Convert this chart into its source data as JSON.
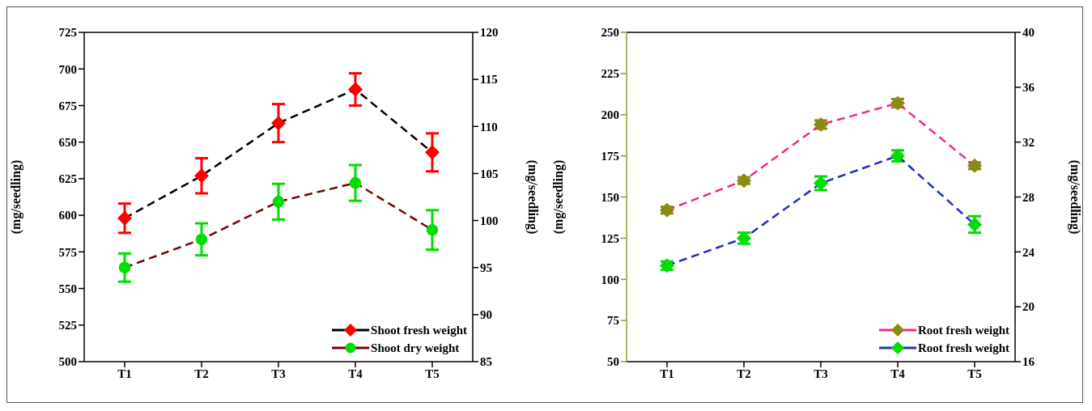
{
  "chart_data": [
    {
      "type": "line",
      "categories": [
        "T1",
        "T2",
        "T3",
        "T4",
        "T5"
      ],
      "ylabel": "(mg/seedling)",
      "y2label": "(mg/seedling)",
      "ylim": [
        500,
        725
      ],
      "yticks": [
        500,
        525,
        550,
        575,
        600,
        625,
        650,
        675,
        700,
        725
      ],
      "y2lim": [
        85,
        120
      ],
      "y2ticks": [
        85,
        90,
        95,
        100,
        105,
        110,
        115,
        120
      ],
      "legend": "bottom right",
      "line_style": "dashed",
      "grid": false,
      "series": [
        {
          "name": "Shoot fresh weight",
          "color": "#000000",
          "colors": [
            "#ff0000",
            "#ff0000",
            "#ff0000",
            "#ff0000",
            "#ff0000"
          ],
          "marker": "diamond",
          "values": [
            598,
            627,
            663,
            686,
            643
          ],
          "errors": [
            10,
            12,
            13,
            11,
            13
          ]
        },
        {
          "name": "Shoot dry weight",
          "axis": "y2",
          "color": "#7b0000",
          "colors": [
            "#00dd00",
            "#00dd00",
            "#00dd00",
            "#00dd00",
            "#00dd00"
          ],
          "marker": "circle",
          "values": [
            95,
            98,
            102,
            104,
            99
          ],
          "errors": [
            1.5,
            1.7,
            1.9,
            1.9,
            2.1
          ]
        }
      ]
    },
    {
      "type": "line",
      "categories": [
        "T1",
        "T2",
        "T3",
        "T4",
        "T5"
      ],
      "ylabel": "(mg/seedling)",
      "y2label": "(mg/seedling)",
      "ylim": [
        50,
        250
      ],
      "yticks": [
        50,
        75,
        100,
        125,
        150,
        175,
        200,
        225,
        250
      ],
      "y2lim": [
        16,
        40
      ],
      "y2ticks": [
        16,
        20,
        24,
        28,
        32,
        36,
        40
      ],
      "legend": "bottom right",
      "line_style": "dashed",
      "grid": false,
      "series": [
        {
          "name": "Root fresh weight",
          "color": "#f0288c",
          "colors": [
            "#8a8a10",
            "#8a8a10",
            "#8a8a10",
            "#8a8a10",
            "#8a8a10"
          ],
          "marker": "diamond",
          "values": [
            142,
            160,
            194,
            207,
            169
          ],
          "errors": [
            2,
            2,
            2.5,
            2.5,
            2
          ]
        },
        {
          "name": "Root fresh weight",
          "axis": "y2",
          "color": "#1f2fbf",
          "colors": [
            "#00dd00",
            "#00dd00",
            "#00dd00",
            "#00dd00",
            "#00dd00"
          ],
          "marker": "diamond",
          "values": [
            23,
            25,
            29,
            31,
            26
          ],
          "errors": [
            0.3,
            0.4,
            0.5,
            0.4,
            0.6
          ]
        }
      ]
    }
  ]
}
